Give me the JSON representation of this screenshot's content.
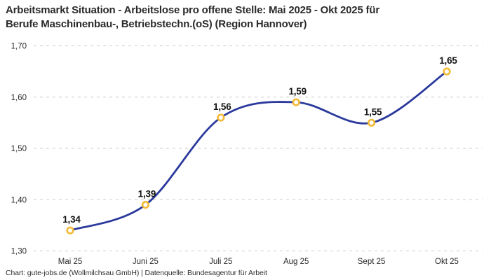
{
  "header": {
    "title_line1": "Arbeitsmarkt Situation - Arbeitslose pro offene Stelle: Mai 2025 - Okt 2025 für",
    "title_line2": "Berufe Maschinenbau-, Betriebstechn.(oS) (Region Hannover)"
  },
  "footer": {
    "credit": "Chart: gute-jobs.de (Wollmilchsau GmbH) | Datenquelle: Bundesagentur für Arbeit"
  },
  "chart_data": {
    "type": "line",
    "title": "Arbeitsmarkt Situation - Arbeitslose pro offene Stelle: Mai 2025 - Okt 2025 für Berufe Maschinenbau-, Betriebstechn.(oS) (Region Hannover)",
    "categories": [
      "Mai 25",
      "Juni 25",
      "Juli 25",
      "Aug 25",
      "Sept 25",
      "Okt 25"
    ],
    "values": [
      1.34,
      1.39,
      1.56,
      1.59,
      1.55,
      1.65
    ],
    "value_labels": [
      "1,34",
      "1,39",
      "1,56",
      "1,59",
      "1,55",
      "1,65"
    ],
    "ylim": [
      1.3,
      1.7
    ],
    "yticks": [
      1.3,
      1.4,
      1.5,
      1.6,
      1.7
    ],
    "ytick_labels": [
      "1,30",
      "1,40",
      "1,50",
      "1,60",
      "1,70"
    ],
    "xlabel": "",
    "ylabel": "",
    "grid": "horizontal-dashed",
    "legend": "none",
    "smooth": true,
    "colors": {
      "line": "#2b3a9c",
      "marker_ring": "#f5ba35",
      "marker_fill": "#ffffff",
      "grid": "#cbcbcb",
      "tick_text": "#2b2b2b",
      "value_text": "#141414"
    }
  }
}
